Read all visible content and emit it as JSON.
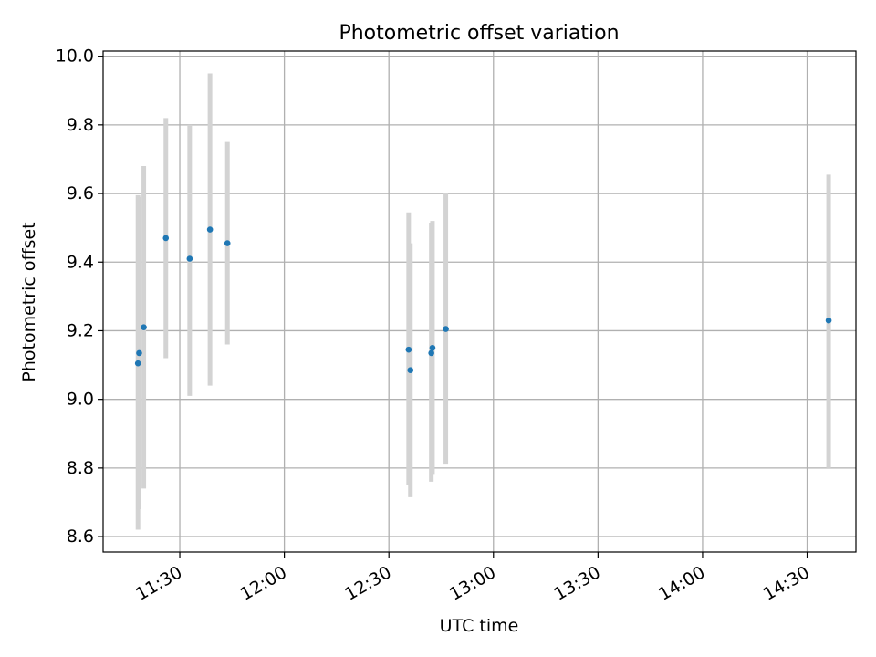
{
  "chart_data": {
    "type": "scatter",
    "title": "Photometric offset variation",
    "xlabel": "UTC time",
    "ylabel": "Photometric offset",
    "x_axis_type": "time",
    "xlim": [
      "11:08",
      "14:44"
    ],
    "ylim": [
      8.555,
      10.015
    ],
    "x_ticks": [
      "11:30",
      "12:00",
      "12:30",
      "13:00",
      "13:30",
      "14:00",
      "14:30"
    ],
    "y_ticks": [
      "8.6",
      "8.8",
      "9.0",
      "9.2",
      "9.4",
      "9.6",
      "9.8",
      "10.0"
    ],
    "grid": true,
    "colors": {
      "point": "#1f77b4",
      "errorbar": "#d3d3d3",
      "grid": "#b0b0b0"
    },
    "points": [
      {
        "x": "11:18:00",
        "y": 9.105,
        "ylow": 8.62,
        "yhigh": 9.595
      },
      {
        "x": "11:18:20",
        "y": 9.135,
        "ylow": 8.68,
        "yhigh": 9.59
      },
      {
        "x": "11:19:40",
        "y": 9.21,
        "ylow": 8.74,
        "yhigh": 9.68
      },
      {
        "x": "11:26:00",
        "y": 9.47,
        "ylow": 9.12,
        "yhigh": 9.82
      },
      {
        "x": "11:32:50",
        "y": 9.41,
        "ylow": 9.01,
        "yhigh": 9.8
      },
      {
        "x": "11:38:40",
        "y": 9.495,
        "ylow": 9.04,
        "yhigh": 9.95
      },
      {
        "x": "11:43:40",
        "y": 9.455,
        "ylow": 9.16,
        "yhigh": 9.75
      },
      {
        "x": "12:35:40",
        "y": 9.145,
        "ylow": 8.75,
        "yhigh": 9.545
      },
      {
        "x": "12:36:10",
        "y": 9.085,
        "ylow": 8.715,
        "yhigh": 9.455
      },
      {
        "x": "12:42:10",
        "y": 9.135,
        "ylow": 8.76,
        "yhigh": 9.515
      },
      {
        "x": "12:42:30",
        "y": 9.15,
        "ylow": 8.78,
        "yhigh": 9.52
      },
      {
        "x": "12:46:20",
        "y": 9.205,
        "ylow": 8.81,
        "yhigh": 9.6
      },
      {
        "x": "14:36:10",
        "y": 9.23,
        "ylow": 8.8,
        "yhigh": 9.655
      }
    ]
  }
}
